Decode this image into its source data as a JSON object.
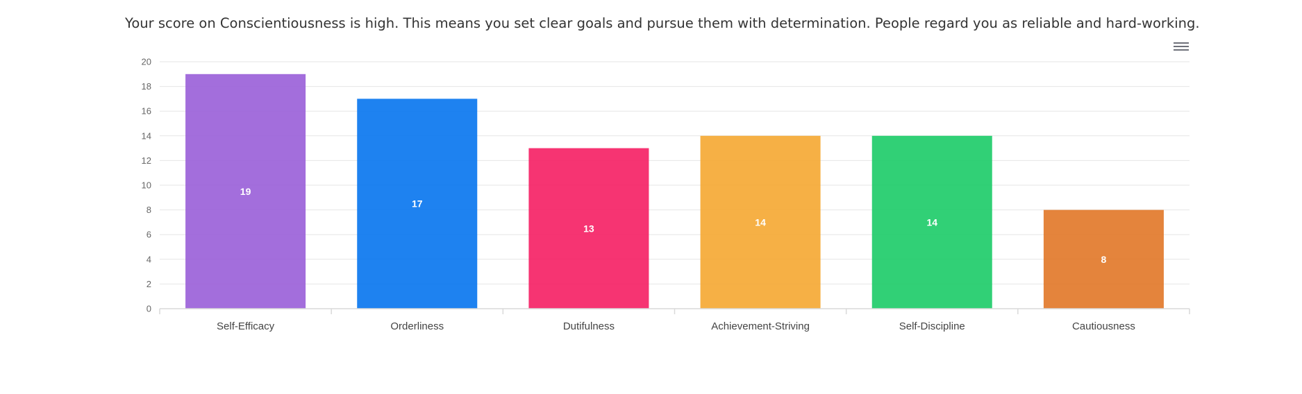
{
  "summary_text": "Your score on Conscientiousness is high. This means you set clear goals and pursue them with determination. People regard you as reliable and hard-working.",
  "menu_icon": "hamburger-menu-icon",
  "chart_data": {
    "type": "bar",
    "title": "",
    "xlabel": "",
    "ylabel": "",
    "ylim": [
      0,
      20
    ],
    "yticks": [
      0,
      2,
      4,
      6,
      8,
      10,
      12,
      14,
      16,
      18,
      20
    ],
    "grid": true,
    "legend": "none",
    "categories": [
      "Self-Efficacy",
      "Orderliness",
      "Dutifulness",
      "Achievement-Striving",
      "Self-Discipline",
      "Cautiousness"
    ],
    "values": [
      19,
      17,
      13,
      14,
      14,
      8
    ],
    "colors": [
      "#9b62d9",
      "#0b77ef",
      "#f52366",
      "#f5a935",
      "#20cc6a",
      "#e27a2b"
    ]
  }
}
